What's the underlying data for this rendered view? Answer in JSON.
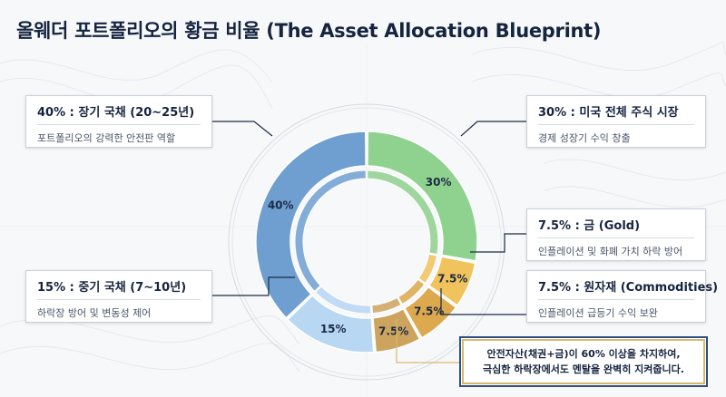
{
  "title": "올웨더 포트폴리오의 황금 비율 (The Asset Allocation Blueprint)",
  "chart_data": {
    "type": "pie",
    "variant": "donut",
    "slices": [
      {
        "label": "30% : 미국 전체 주식 시장",
        "desc": "경제 성장기 수익 창출",
        "value": 30,
        "value_label": "30%",
        "color": "#8fd18e"
      },
      {
        "label": "7.5% : 금 (Gold)",
        "desc": "인플레이션 및 화폐 가치 하락 방어",
        "value": 7.5,
        "value_label": "7.5%",
        "color": "#f1c35c"
      },
      {
        "label": "7.5% : 원자재 (Commodities)",
        "desc": "인플레이션 급등기 수익 보완",
        "value": 7.5,
        "value_label": "7.5%",
        "color": "#dda94e"
      },
      {
        "label": "7.5%",
        "desc": "",
        "value": 7.5,
        "value_label": "7.5%",
        "color": "#cda45e"
      },
      {
        "label": "15% : 중기 국채 (7~10년)",
        "desc": "하락장 방어 및 변동성 제어",
        "value": 15,
        "value_label": "15%",
        "color": "#b7d7f2"
      },
      {
        "label": "40% : 장기 국채 (20~25년)",
        "desc": "포트폴리오의 강력한 안전판 역할",
        "value": 40,
        "value_label": "40%",
        "color": "#6f9fd0"
      }
    ]
  },
  "note": {
    "line1": "안전자산(채권+금)이 60% 이상을 차지하여,",
    "line2": "극심한 하락장에서도 멘탈을 완벽히 지켜줍니다."
  }
}
